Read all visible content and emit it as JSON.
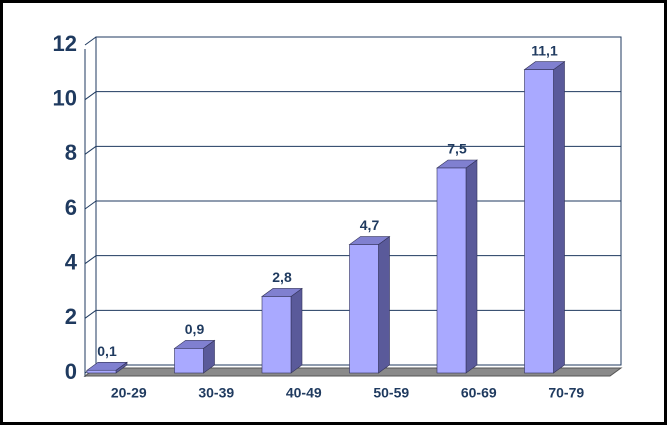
{
  "chart_data": {
    "type": "bar",
    "categories": [
      "20-29",
      "30-39",
      "40-49",
      "50-59",
      "60-69",
      "70-79"
    ],
    "values": [
      0.1,
      0.9,
      2.8,
      4.7,
      7.5,
      11.1
    ],
    "value_labels": [
      "0,1",
      "0,9",
      "2,8",
      "4,7",
      "7,5",
      "11,1"
    ],
    "color": "#a9a9ff",
    "ylim": [
      0,
      12
    ],
    "yticks": [
      0,
      2,
      4,
      6,
      8,
      10,
      12
    ],
    "grid": true
  }
}
